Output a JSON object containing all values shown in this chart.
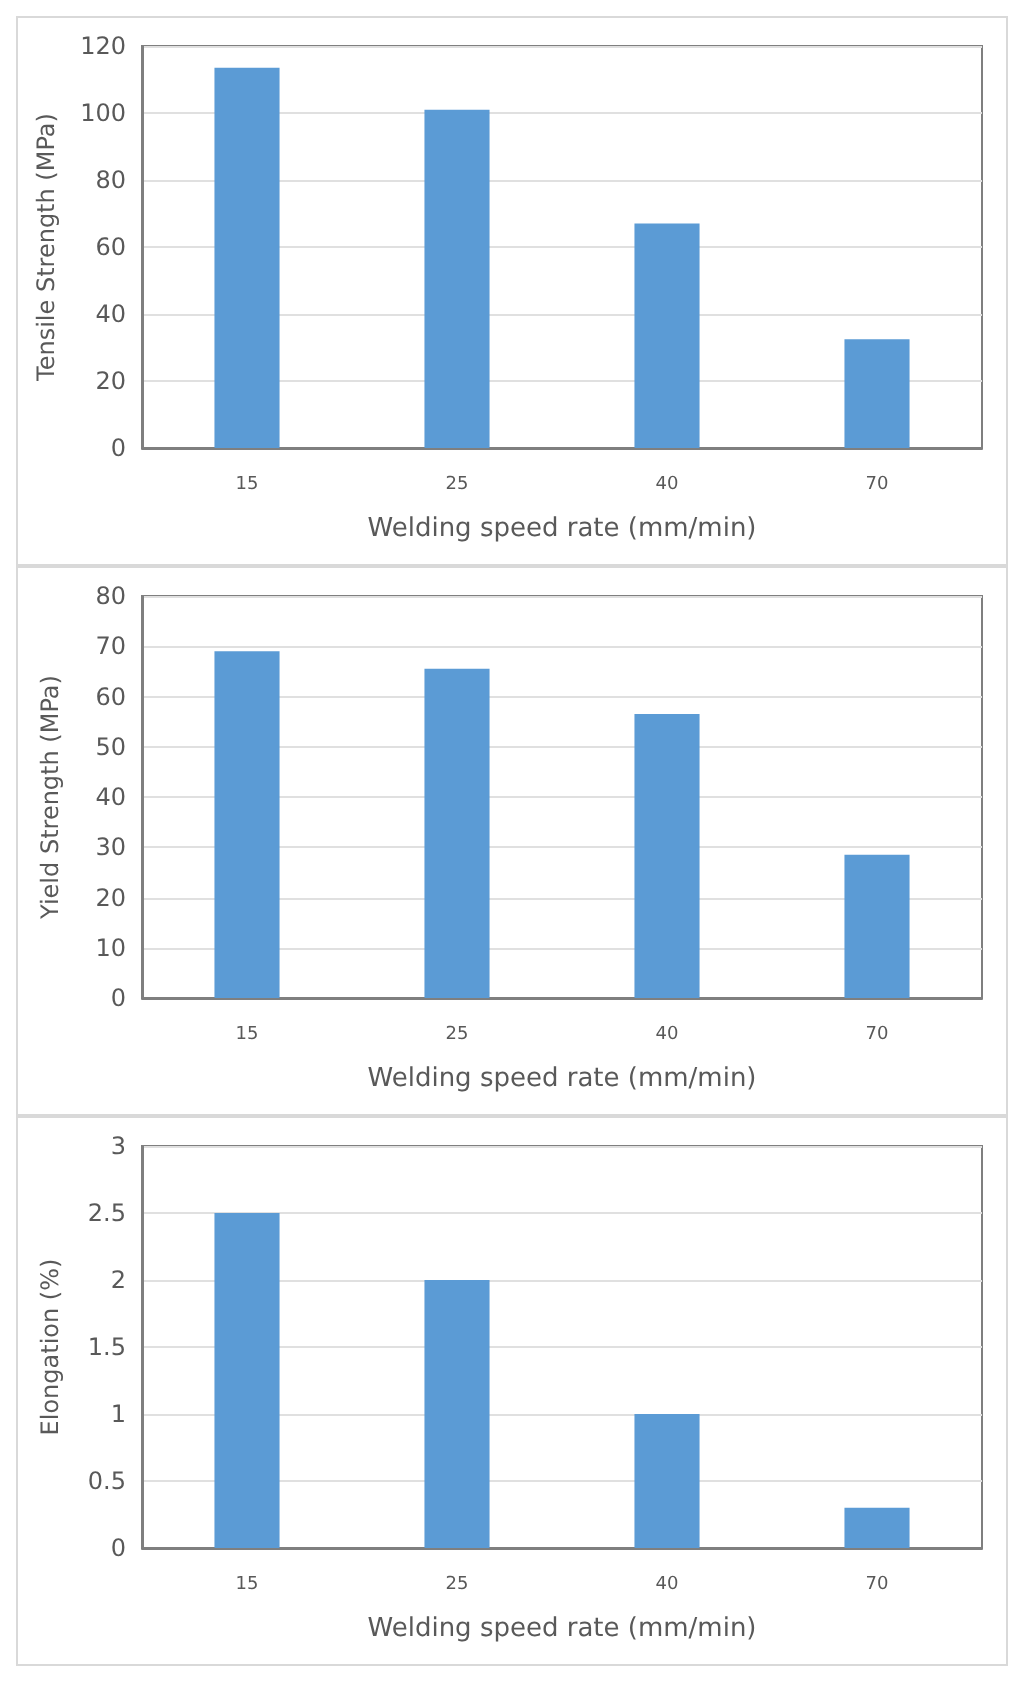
{
  "chart_data": [
    {
      "type": "bar",
      "xlabel": "Welding speed rate (mm/min)",
      "ylabel": "Tensile Strength (MPa)",
      "categories": [
        "15",
        "25",
        "40",
        "70"
      ],
      "values": [
        113.5,
        101,
        67,
        32.5
      ],
      "color": "#5b9bd5",
      "ylim": [
        0,
        120
      ],
      "yticks": [
        0,
        20,
        40,
        60,
        80,
        100,
        120
      ],
      "grid": "y"
    },
    {
      "type": "bar",
      "xlabel": "Welding speed rate (mm/min)",
      "ylabel": "Yield Strength (MPa)",
      "categories": [
        "15",
        "25",
        "40",
        "70"
      ],
      "values": [
        69,
        65.5,
        56.5,
        28.5
      ],
      "color": "#5b9bd5",
      "ylim": [
        0,
        80
      ],
      "yticks": [
        0,
        10,
        20,
        30,
        40,
        50,
        60,
        70,
        80
      ],
      "grid": "y"
    },
    {
      "type": "bar",
      "xlabel": "Welding speed rate (mm/min)",
      "ylabel": "Elongation (%)",
      "categories": [
        "15",
        "25",
        "40",
        "70"
      ],
      "values": [
        2.5,
        2,
        1,
        0.3
      ],
      "color": "#5b9bd5",
      "ylim": [
        0,
        3
      ],
      "yticks": [
        0,
        0.5,
        1,
        1.5,
        2,
        2.5,
        3
      ],
      "grid": "y"
    }
  ]
}
